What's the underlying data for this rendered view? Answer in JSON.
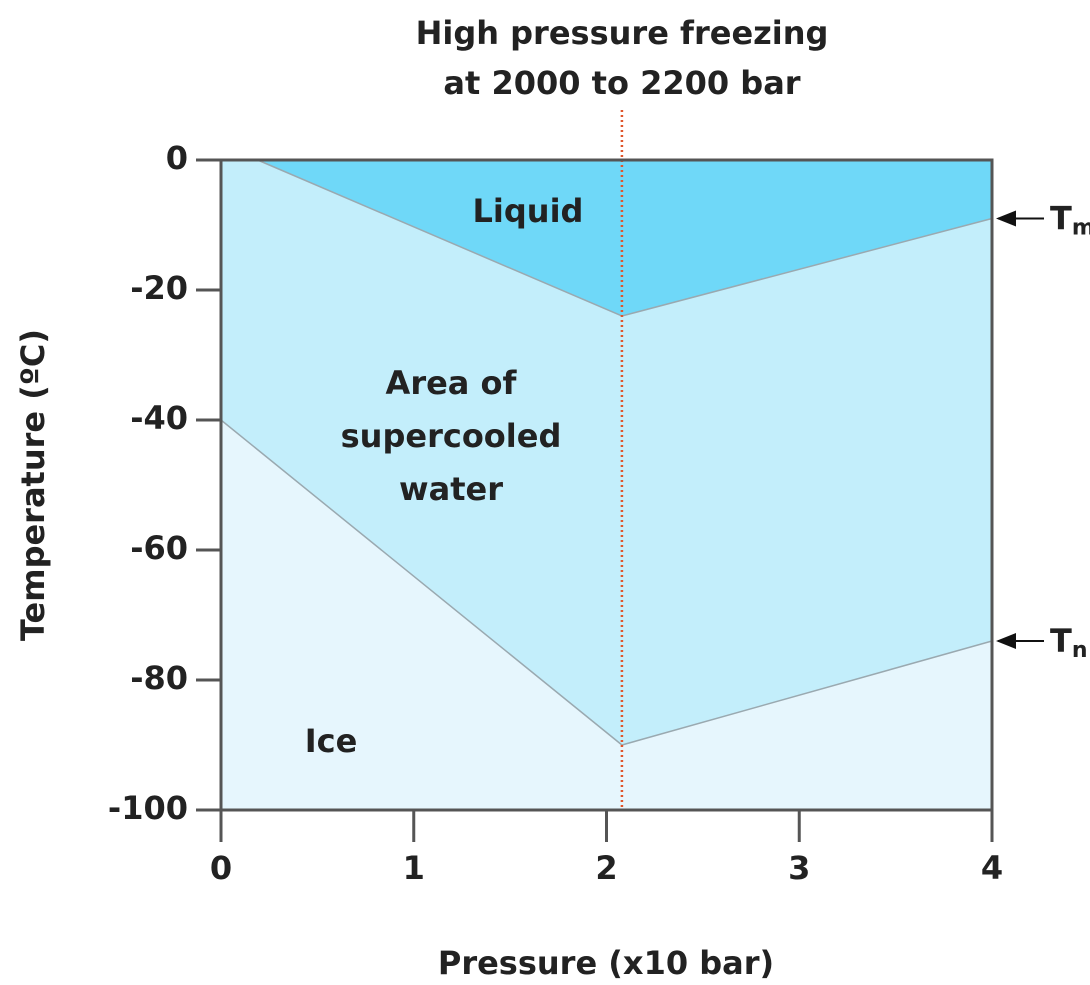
{
  "chart_data": {
    "type": "area",
    "title": [
      "High pressure freezing",
      "at 2000 to 2200 bar"
    ],
    "xlabel": "Pressure (x10  bar)",
    "ylabel": "Temperature (ºC)",
    "xlim": [
      0,
      4
    ],
    "xticks": [
      0,
      1,
      2,
      3,
      4
    ],
    "ylim": [
      -100,
      0
    ],
    "yticks": [
      0,
      -20,
      -40,
      -60,
      -80,
      -100
    ],
    "series": [
      {
        "name": "Tm",
        "color": "#9aa9b0",
        "x": [
          0.19,
          2.08,
          4
        ],
        "values": [
          0,
          -24,
          -9
        ]
      },
      {
        "name": "Tn",
        "color": "#9aa9b0",
        "x": [
          0,
          2.08,
          4
        ],
        "values": [
          -40,
          -90,
          -74
        ]
      }
    ],
    "regions": [
      {
        "label": [
          "Liquid"
        ],
        "color": "#6fd8f8"
      },
      {
        "label": [
          "Area of",
          "supercooled",
          "water"
        ],
        "color": "#c3eefb"
      },
      {
        "label": [
          "Ice"
        ],
        "color": "#e6f6fd"
      }
    ],
    "vline": {
      "x": 2.08,
      "color": "#e0552b"
    }
  }
}
